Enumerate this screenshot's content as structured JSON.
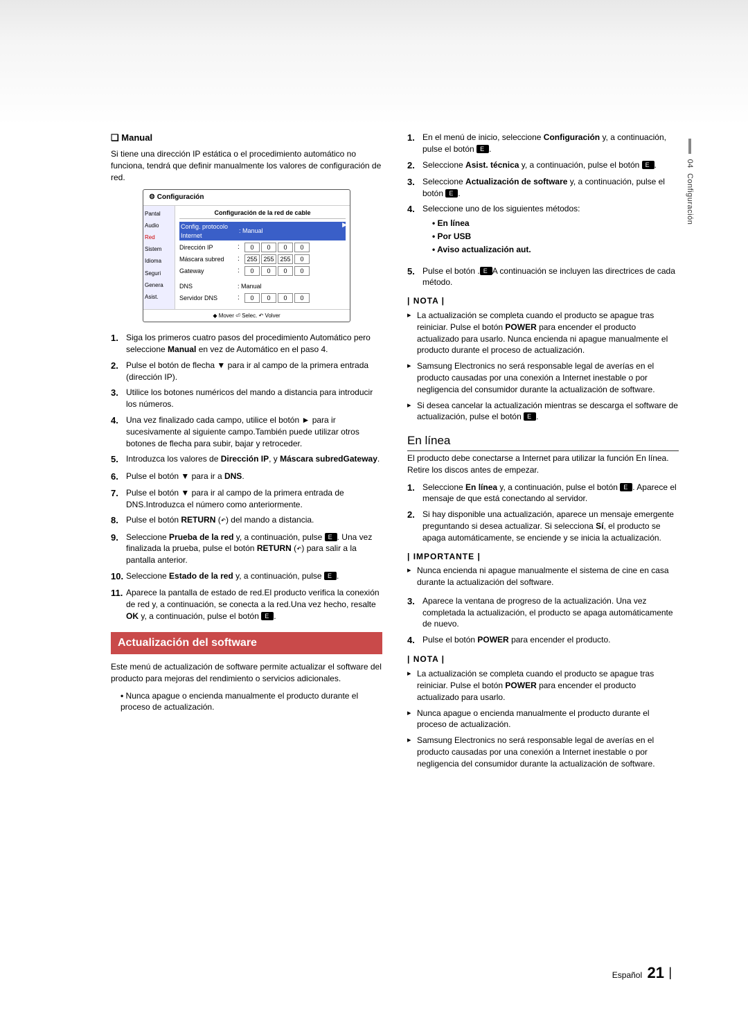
{
  "sideTab": {
    "chapter": "04",
    "title": "Configuración"
  },
  "footer": {
    "lang": "Español",
    "page": "21"
  },
  "left": {
    "manualHeading": "Manual",
    "manualIntro": "Si tiene una dirección IP estática o el procedimiento automático no funciona, tendrá que definir manualmente los valores de configuración de red.",
    "steps": [
      {
        "n": "1.",
        "pre": "Siga los primeros cuatro pasos del procedimiento Automático pero seleccione ",
        "b1": "Manual",
        "post": " en vez de Automático en el paso 4."
      },
      {
        "n": "2.",
        "pre": "Pulse el botón de flecha ▼ para ir al campo de la primera entrada (dirección IP)."
      },
      {
        "n": "3.",
        "pre": "Utilice los botones numéricos del mando a distancia para introducir los números."
      },
      {
        "n": "4.",
        "pre": "Una vez finalizado cada campo, utilice el botón ► para ir sucesivamente al siguiente campo.También puede utilizar otros botones de flecha para subir, bajar y retroceder."
      },
      {
        "n": "5.",
        "pre": "Introduzca los valores de ",
        "b1": "Dirección IP",
        "mid1": ", ",
        "b2": "Máscara subred",
        "mid2": " y ",
        "b3": "Gateway",
        "post": "."
      },
      {
        "n": "6.",
        "pre": "Pulse el botón ▼ para ir a ",
        "b1": "DNS",
        "post": "."
      },
      {
        "n": "7.",
        "pre": "Pulse el botón ▼ para ir al campo de la primera entrada de DNS.Introduzca el número como anteriormente."
      },
      {
        "n": "8.",
        "pre": "Pulse el botón ",
        "b1": "RETURN",
        "post": " (",
        "ret": "↶",
        "post2": ") del mando a distancia."
      },
      {
        "n": "9.",
        "pre": "Seleccione ",
        "b1": "Prueba de la red",
        "mid1": " y, a continuación, pulse ",
        "enter": true,
        "mid2": ". Una vez finalizada la prueba, pulse el botón ",
        "b2": "RETURN",
        "post": " (",
        "ret": "↶",
        "post2": ") para salir a la pantalla anterior."
      },
      {
        "n": "10.",
        "pre": "Seleccione ",
        "b1": "Estado de la red",
        "mid1": " y, a continuación, pulse ",
        "enter": true,
        "post": "."
      },
      {
        "n": "11.",
        "pre": "Aparece la pantalla de estado de red.El producto verifica la conexión de red y, a continuación, se conecta a la red.Una vez hecho, resalte ",
        "b1": "OK",
        "mid1": " y, a continuación, pulse el botón ",
        "enter": true,
        "post": "."
      }
    ],
    "swTitle": "Actualización del software",
    "swIntro": "Este menú de actualización de software permite actualizar el software del producto para mejoras del rendimiento o servicios adicionales.",
    "swWarn": "Nunca apague o encienda manualmente el producto durante el proceso de actualización."
  },
  "right": {
    "steps": [
      {
        "n": "1.",
        "pre": "En el menú de inicio, seleccione ",
        "b1": "Configuración",
        "mid1": " y, a continuación, pulse el botón ",
        "enter": true,
        "post": "."
      },
      {
        "n": "2.",
        "pre": "Seleccione ",
        "b1": "Asist. técnica",
        "mid1": " y, a continuación, pulse el botón ",
        "enter": true,
        "post": "."
      },
      {
        "n": "3.",
        "pre": "Seleccione ",
        "b1": "Actualización de software",
        "mid1": " y, a continuación, pulse el botón ",
        "enter": true,
        "post": "."
      },
      {
        "n": "4.",
        "pre": "Seleccione uno de los siguientes métodos:"
      },
      {
        "n": "5.",
        "pre": "Pulse el botón ",
        "enter": true,
        "mid1": ".",
        "br": true,
        "post": "A continuación se incluyen las directrices de cada método."
      }
    ],
    "methods": [
      "En línea",
      "Por USB",
      "Aviso actualización aut."
    ],
    "notaH": "| NOTA |",
    "nota1": [
      {
        "pre": "La actualización se completa cuando el producto se apague tras reiniciar. Pulse el botón ",
        "b1": "POWER",
        "post": " para encender el producto actualizado para usarlo. Nunca encienda ni apague manualmente el producto durante el proceso de actualización."
      },
      {
        "pre": "Samsung Electronics no será responsable legal de averías en el producto causadas por una conexión a Internet inestable o por negligencia del consumidor durante la actualización de software."
      },
      {
        "pre": "Si desea cancelar la actualización mientras se descarga el software de actualización, pulse el botón ",
        "enter": true,
        "post": "."
      }
    ],
    "enlineaH": "En línea",
    "enlineaIntro": "El producto debe conectarse a Internet para utilizar la función En línea. Retire los discos antes de empezar.",
    "enlineaSteps": [
      {
        "n": "1.",
        "pre": "Seleccione ",
        "b1": "En línea",
        "mid1": " y, a continuación, pulse el botón ",
        "enter": true,
        "post": ". Aparece el mensaje de que está conectando al servidor."
      },
      {
        "n": "2.",
        "pre": "Si hay disponible una actualización, aparece un mensaje emergente preguntando si desea actualizar. Si selecciona ",
        "b1": "Sí",
        "post": ", el producto se apaga automáticamente, se enciende y se inicia la actualización."
      }
    ],
    "impH": "| IMPORTANTE |",
    "imp": [
      {
        "pre": "Nunca encienda ni apague manualmente el sistema de cine en casa durante la actualización del software."
      }
    ],
    "enlineaSteps2": [
      {
        "n": "3.",
        "pre": "Aparece la ventana de progreso de la actualización. Una vez completada la actualización, el producto se apaga automáticamente de nuevo."
      },
      {
        "n": "4.",
        "pre": "Pulse el botón ",
        "b1": "POWER",
        "post": " para encender el producto."
      }
    ],
    "nota2": [
      {
        "pre": "La actualización se completa cuando el producto se apague tras reiniciar. Pulse el botón ",
        "b1": "POWER",
        "post": " para encender el producto actualizado para usarlo."
      },
      {
        "pre": "Nunca apague o encienda manualmente el producto durante el proceso de actualización."
      },
      {
        "pre": "Samsung Electronics no será responsable legal de averías en el producto causadas por una conexión a Internet inestable o por negligencia del consumidor durante la actualización de software."
      }
    ]
  },
  "cfg": {
    "winTitle": "Configuración",
    "sideItems": [
      "Pantal",
      "Audio",
      "Red",
      "Sistem",
      "Idioma",
      "Seguri",
      "Genera",
      "Asist."
    ],
    "title": "Configuración de la red de cable",
    "rowHL": {
      "label": "Config. protocolo Internet",
      "val": ": Manual"
    },
    "rows": [
      {
        "label": "Dirección IP",
        "ip": [
          "0",
          "0",
          "0",
          "0"
        ]
      },
      {
        "label": "Máscara subred",
        "ip": [
          "255",
          "255",
          "255",
          "0"
        ]
      },
      {
        "label": "Gateway",
        "ip": [
          "0",
          "0",
          "0",
          "0"
        ]
      }
    ],
    "dnsLabel": "DNS",
    "dnsVal": ": Manual",
    "srvLabel": "Servidor DNS",
    "srvIp": [
      "0",
      "0",
      "0",
      "0"
    ],
    "footer": "◆ Mover   ⏎ Selec.   ↶ Volver"
  }
}
